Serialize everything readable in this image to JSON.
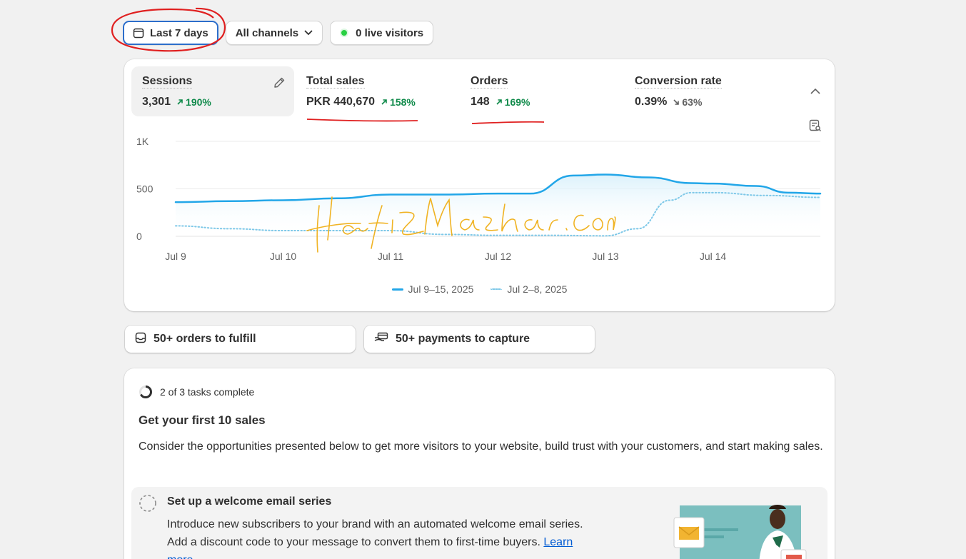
{
  "filters": {
    "date_label": "Last 7 days",
    "channel_label": "All channels",
    "live_label": "0 live visitors"
  },
  "metrics": [
    {
      "label": "Sessions",
      "value": "3,301",
      "change": "190%",
      "direction": "up"
    },
    {
      "label": "Total sales",
      "value": "PKR 440,670",
      "change": "158%",
      "direction": "up"
    },
    {
      "label": "Orders",
      "value": "148",
      "change": "169%",
      "direction": "up"
    },
    {
      "label": "Conversion rate",
      "value": "0.39%",
      "change": "63%",
      "direction": "down"
    }
  ],
  "chart_data": {
    "type": "line",
    "x_ticks": [
      "Jul 9",
      "Jul 10",
      "Jul 11",
      "Jul 12",
      "Jul 13",
      "Jul 14"
    ],
    "y_ticks": [
      "1K",
      "500",
      "0"
    ],
    "ylim": [
      0,
      1000
    ],
    "series": [
      {
        "name": "Jul 9–15, 2025",
        "style": "solid",
        "color": "#22a6e8",
        "x": [
          0,
          0.5,
          1,
          1.5,
          2,
          2.5,
          3,
          3.3,
          3.7,
          4,
          4.4,
          4.8,
          5,
          5.4,
          5.7,
          6
        ],
        "y": [
          360,
          370,
          380,
          400,
          440,
          440,
          450,
          450,
          640,
          650,
          620,
          560,
          555,
          530,
          460,
          450
        ]
      },
      {
        "name": "Jul 2–8, 2025",
        "style": "dotted",
        "color": "#7ec8e8",
        "x": [
          0,
          0.5,
          1,
          1.5,
          2,
          2.5,
          3,
          3.5,
          4,
          4.3,
          4.6,
          4.8,
          5,
          5.5,
          6
        ],
        "y": [
          110,
          80,
          60,
          60,
          60,
          20,
          10,
          10,
          5,
          80,
          380,
          460,
          460,
          430,
          410
        ]
      }
    ],
    "grid": true,
    "legend": "bottom-center"
  },
  "actions": {
    "orders_label": "50+ orders to fulfill",
    "payments_label": "50+ payments to capture"
  },
  "guide": {
    "progress": "2 of 3 tasks complete",
    "progress_fraction": 0.667,
    "title": "Get your first 10 sales",
    "description": "Consider the opportunities presented below to get more visitors to your website, build trust with your customers, and start making sales.",
    "task_title": "Set up a welcome email series",
    "task_description": "Introduce new subscribers to your brand with an automated welcome email series. Add a discount code to your message to convert them to first-time buyers.",
    "task_link": "Learn more"
  },
  "watermark": "Hafiz Mazhar.Com",
  "colors": {
    "accent": "#2c6ecb",
    "positive": "#0f8a4a",
    "series_current": "#22a6e8",
    "series_previous": "#7ec8e8",
    "annotation": "#e02020",
    "watermark": "#f0b323"
  }
}
